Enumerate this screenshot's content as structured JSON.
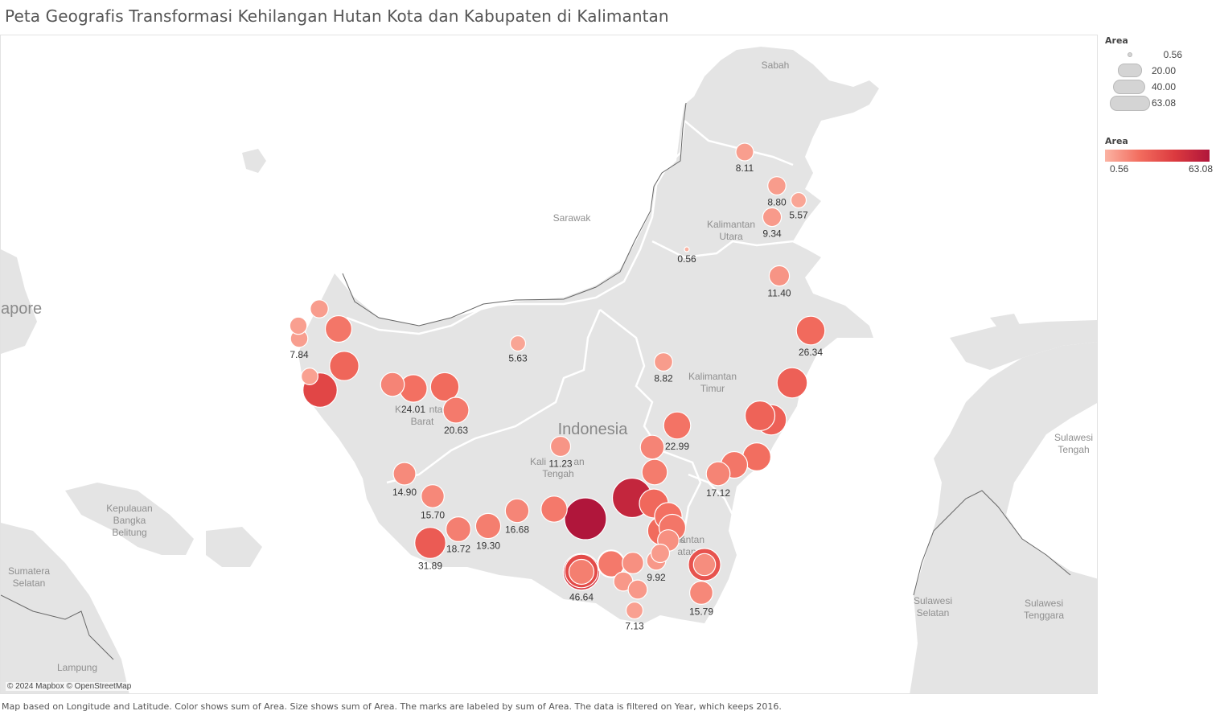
{
  "title": "Peta Geografis Transformasi Kehilangan Hutan Kota dan Kabupaten di Kalimantan",
  "caption": "Map based on Longitude and Latitude.  Color shows sum of Area.  Size shows sum of Area.  The marks are labeled by sum of Area. The data is filtered on Year, which keeps 2016.",
  "attribution": "© 2024 Mapbox © OpenStreetMap",
  "legend": {
    "size_title": "Area",
    "size_values": [
      "0.56",
      "20.00",
      "40.00",
      "63.08"
    ],
    "color_title": "Area",
    "color_min": "0.56",
    "color_max": "63.08"
  },
  "colors": {
    "low": "#fbb3a3",
    "mid": "#f26c5e",
    "high": "#b0163b",
    "land": "#e4e4e4",
    "water": "#ffffff",
    "border": "#ffffff"
  },
  "basemap_labels": {
    "sabah": "Sabah",
    "sarawak": "Sarawak",
    "kalimantan_utara": [
      "Kalimantan",
      "Utara"
    ],
    "kalimantan_timur": [
      "Kalimantan",
      "Timur"
    ],
    "kalimantan_barat": [
      "K",
      "nta",
      "Barat"
    ],
    "kalimantan_tengah": [
      "Kali",
      "an",
      "Tengah"
    ],
    "kalimantan_selatan": [
      "K",
      "antan",
      "atan"
    ],
    "indonesia": "Indonesia",
    "singapore": "apore",
    "kepulauan_bangka_belitung": [
      "Kepulauan",
      "Bangka",
      "Belitung"
    ],
    "sumatera_selatan": [
      "Sumatera",
      "Selatan"
    ],
    "lampung": "Lampung",
    "sulawesi_tengah": [
      "Sulawesi",
      "Tengah"
    ],
    "sulawesi_selatan": [
      "Sulawesi",
      "Selatan"
    ],
    "sulawesi_tenggara": [
      "Sulawesi",
      "Tenggara"
    ]
  },
  "chart_data": {
    "type": "map",
    "measure": "Area (sum)",
    "filter": "Year = 2016",
    "labeled_points": [
      {
        "id": "p1",
        "area": 8.11,
        "label": "8.11"
      },
      {
        "id": "p2",
        "area": 8.8,
        "label": "8.80"
      },
      {
        "id": "p3",
        "area": 5.57,
        "label": "5.57"
      },
      {
        "id": "p4",
        "area": 9.34,
        "label": "9.34"
      },
      {
        "id": "p5",
        "area": 0.56,
        "label": "0.56"
      },
      {
        "id": "p6",
        "area": 11.4,
        "label": "11.40"
      },
      {
        "id": "p7",
        "area": 26.34,
        "label": "26.34"
      },
      {
        "id": "p8",
        "area": 7.84,
        "label": "7.84"
      },
      {
        "id": "p9",
        "area": 5.63,
        "label": "5.63"
      },
      {
        "id": "p10",
        "area": 8.82,
        "label": "8.82"
      },
      {
        "id": "p11",
        "area": 24.01,
        "label": "24.01"
      },
      {
        "id": "p12",
        "area": 20.63,
        "label": "20.63"
      },
      {
        "id": "p13",
        "area": 22.99,
        "label": "22.99"
      },
      {
        "id": "p14",
        "area": 11.23,
        "label": "11.23"
      },
      {
        "id": "p15",
        "area": 14.9,
        "label": "14.90"
      },
      {
        "id": "p16",
        "area": 17.12,
        "label": "17.12"
      },
      {
        "id": "p17",
        "area": 15.7,
        "label": "15.70"
      },
      {
        "id": "p18",
        "area": 16.68,
        "label": "16.68"
      },
      {
        "id": "p19",
        "area": 18.72,
        "label": "18.72"
      },
      {
        "id": "p20",
        "area": 19.3,
        "label": "19.30"
      },
      {
        "id": "p21",
        "area": 31.89,
        "label": "31.89"
      },
      {
        "id": "p22",
        "area": 9.92,
        "label": "9.92"
      },
      {
        "id": "p23",
        "area": 46.64,
        "label": "46.64"
      },
      {
        "id": "p24",
        "area": 15.79,
        "label": "15.79"
      },
      {
        "id": "p25",
        "area": 7.13,
        "label": "7.13"
      }
    ],
    "unlabeled_points": [
      {
        "id": "u1",
        "area": 8.5
      },
      {
        "id": "u2",
        "area": 22.0
      },
      {
        "id": "u3",
        "area": 7.0
      },
      {
        "id": "u4",
        "area": 28.0
      },
      {
        "id": "u5",
        "area": 7.5
      },
      {
        "id": "u6",
        "area": 40.0
      },
      {
        "id": "u7",
        "area": 17.0
      },
      {
        "id": "u8",
        "area": 26.0
      },
      {
        "id": "u9",
        "area": 30.0
      },
      {
        "id": "u10",
        "area": 29.0
      },
      {
        "id": "u11",
        "area": 30.0
      },
      {
        "id": "u12",
        "area": 25.0
      },
      {
        "id": "u13",
        "area": 22.0
      },
      {
        "id": "u14",
        "area": 17.0
      },
      {
        "id": "u15",
        "area": 20.0
      },
      {
        "id": "u16",
        "area": 21.0
      },
      {
        "id": "u17",
        "area": 24.0
      },
      {
        "id": "u18",
        "area": 27.0
      },
      {
        "id": "u19",
        "area": 63.08
      },
      {
        "id": "u20",
        "area": 55.0
      },
      {
        "id": "u21",
        "area": 38.0
      },
      {
        "id": "u22",
        "area": 24.0
      },
      {
        "id": "u23",
        "area": 26.0
      },
      {
        "id": "u24",
        "area": 22.0
      },
      {
        "id": "u25",
        "area": 13.0
      },
      {
        "id": "u26",
        "area": 9.0
      },
      {
        "id": "u27",
        "area": 13.0
      },
      {
        "id": "u28",
        "area": 10.0
      },
      {
        "id": "u29",
        "area": 10.0
      },
      {
        "id": "u30",
        "area": 35.0
      },
      {
        "id": "u31",
        "area": 14.0
      },
      {
        "id": "u32",
        "area": 21.0
      },
      {
        "id": "u33",
        "area": 19.0
      }
    ]
  }
}
